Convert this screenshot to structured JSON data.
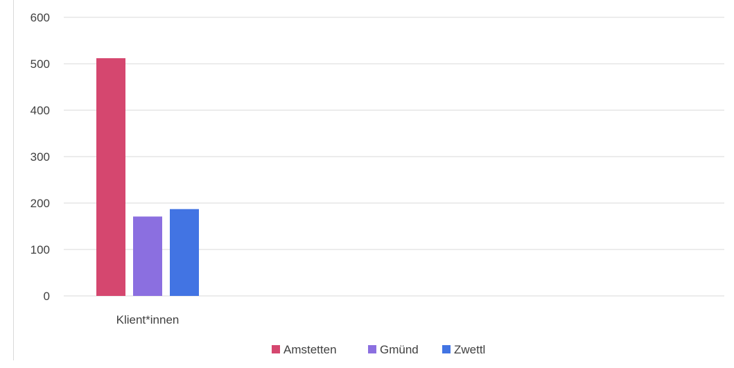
{
  "chart_data": {
    "type": "bar",
    "categories": [
      "Klient*innen"
    ],
    "series": [
      {
        "name": "Amstetten",
        "values": [
          512
        ],
        "color": "#D5476F"
      },
      {
        "name": "Gmünd",
        "values": [
          171
        ],
        "color": "#8B6FE0"
      },
      {
        "name": "Zwettl",
        "values": [
          187
        ],
        "color": "#4274E3"
      }
    ],
    "title": "",
    "xlabel": "",
    "ylabel": "",
    "ylim": [
      0,
      600
    ],
    "yticks": [
      "0",
      "100",
      "200",
      "300",
      "400",
      "500",
      "600"
    ],
    "grid": true,
    "legend_position": "bottom"
  }
}
